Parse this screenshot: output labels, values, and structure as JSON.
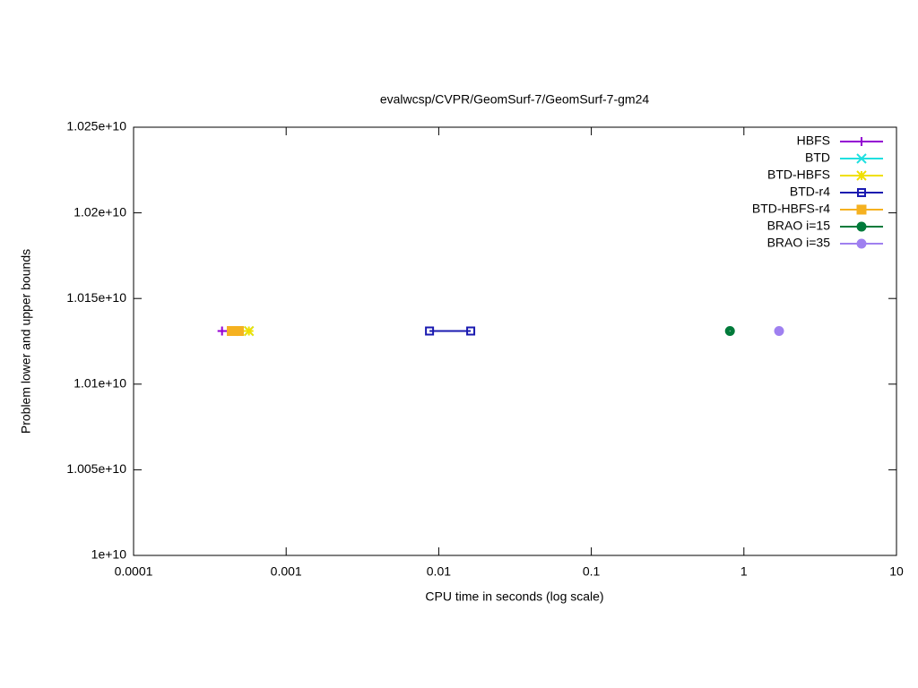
{
  "chart_data": {
    "type": "line",
    "title": "evalwcsp/CVPR/GeomSurf-7/GeomSurf-7-gm24",
    "x_label": "CPU time in seconds (log scale)",
    "y_label": "Problem lower and upper bounds",
    "x_log": true,
    "xlim": [
      0.0001,
      10
    ],
    "xticks": [
      0.0001,
      0.001,
      0.01,
      0.1,
      1,
      10
    ],
    "ylim": [
      10000000000,
      10250000000
    ],
    "yticks": [
      {
        "value": 10000000000,
        "label": "1e+10"
      },
      {
        "value": 10050000000,
        "label": "1.005e+10"
      },
      {
        "value": 10100000000,
        "label": "1.01e+10"
      },
      {
        "value": 10150000000,
        "label": "1.015e+10"
      },
      {
        "value": 10200000000,
        "label": "1.02e+10"
      },
      {
        "value": 10250000000,
        "label": "1.025e+10"
      }
    ],
    "legend": "top-right",
    "series": [
      {
        "name": "HBFS",
        "color": "#9400d3",
        "marker": "plus",
        "x": [
          0.00038,
          0.00042
        ],
        "values": [
          10131000000,
          10131000000
        ]
      },
      {
        "name": "BTD",
        "color": "#20e0e0",
        "marker": "cross",
        "x": [
          0.00057
        ],
        "values": [
          10131000000
        ]
      },
      {
        "name": "BTD-HBFS",
        "color": "#f0e000",
        "marker": "star",
        "x": [
          0.00045,
          0.00057
        ],
        "values": [
          10131000000,
          10131000000
        ]
      },
      {
        "name": "BTD-r4",
        "color": "#1a1ab0",
        "marker": "square-open",
        "x": [
          0.0087,
          0.0162
        ],
        "values": [
          10131000000,
          10131000000
        ]
      },
      {
        "name": "BTD-HBFS-r4",
        "color": "#f5b120",
        "marker": "square",
        "x": [
          0.00044,
          0.00049
        ],
        "values": [
          10131000000,
          10131000000
        ]
      },
      {
        "name": "BRAO i=15",
        "color": "#007a3a",
        "marker": "circle-dot",
        "x": [
          0.81
        ],
        "values": [
          10131000000
        ]
      },
      {
        "name": "BRAO i=35",
        "color": "#9f80f0",
        "marker": "circle",
        "x": [
          1.7
        ],
        "values": [
          10131000000
        ]
      }
    ]
  }
}
